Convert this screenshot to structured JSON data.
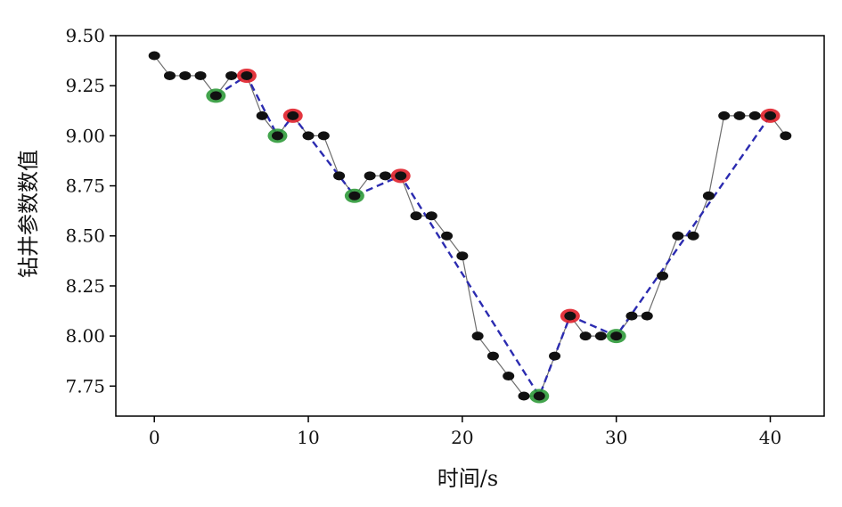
{
  "chart_data": {
    "type": "line",
    "xlabel": "时间/s",
    "ylabel": "钻井参数数值",
    "xlim": [
      -2.5,
      43.5
    ],
    "ylim": [
      7.6,
      9.5
    ],
    "xticks": [
      0,
      10,
      20,
      30,
      40
    ],
    "yticks": [
      7.75,
      8.0,
      8.25,
      8.5,
      8.75,
      9.0,
      9.25,
      9.5
    ],
    "xtick_labels": [
      "0",
      "10",
      "20",
      "30",
      "40"
    ],
    "ytick_labels": [
      "7.75",
      "8.00",
      "8.25",
      "8.50",
      "8.75",
      "9.00",
      "9.25",
      "9.50"
    ],
    "series": [
      {
        "style": "solid-thin",
        "color": "#000000",
        "x": [
          0,
          1,
          2,
          3,
          4,
          5,
          6,
          7,
          8,
          9,
          10,
          11,
          12,
          13,
          14,
          15,
          16,
          17,
          18,
          19,
          20,
          21,
          22,
          23,
          24,
          25,
          26,
          27,
          28,
          29,
          30,
          31,
          32,
          33,
          34,
          35,
          36,
          37,
          38,
          39,
          40,
          41
        ],
        "values": [
          9.4,
          9.3,
          9.3,
          9.3,
          9.2,
          9.3,
          9.3,
          9.1,
          9.0,
          9.1,
          9.0,
          9.0,
          8.8,
          8.7,
          8.8,
          8.8,
          8.8,
          8.6,
          8.6,
          8.5,
          8.4,
          8.0,
          7.9,
          7.8,
          7.7,
          7.7,
          7.9,
          8.1,
          8.0,
          8.0,
          8.0,
          8.1,
          8.1,
          8.3,
          8.5,
          8.5,
          8.7,
          9.1,
          9.1,
          9.1,
          9.1,
          9.0
        ]
      },
      {
        "style": "dashed",
        "color": "#2b2bb0",
        "x": [
          4,
          6,
          8,
          9,
          13,
          16,
          25,
          27,
          30,
          40
        ],
        "values": [
          9.2,
          9.3,
          9.0,
          9.1,
          8.7,
          8.8,
          7.7,
          8.1,
          8.0,
          9.1
        ]
      }
    ],
    "markers": {
      "peaks": {
        "color": "#e0202a",
        "x": [
          6,
          9,
          16,
          27,
          40
        ],
        "values": [
          9.3,
          9.1,
          8.8,
          8.1,
          9.1
        ]
      },
      "valleys": {
        "color": "#2f9a3a",
        "x": [
          4,
          8,
          13,
          25,
          30
        ],
        "values": [
          9.2,
          9.0,
          8.7,
          7.7,
          8.0
        ]
      }
    }
  }
}
